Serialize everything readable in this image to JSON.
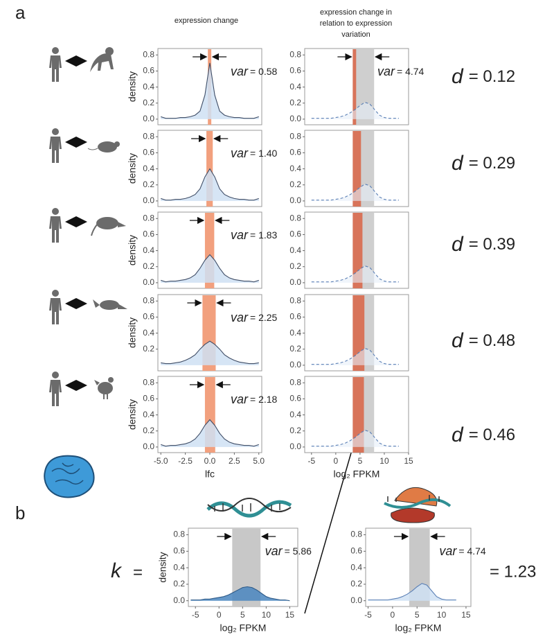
{
  "panel_labels": {
    "a": "a",
    "b": "b"
  },
  "column_titles": {
    "left": "expression change",
    "right": [
      "expression change in",
      "relation to expression",
      "variation"
    ]
  },
  "d_values": [
    {
      "symbol": "d",
      "text": "= 0.12"
    },
    {
      "symbol": "d",
      "text": "= 0.29"
    },
    {
      "symbol": "d",
      "text": "= 0.39"
    },
    {
      "symbol": "d",
      "text": "= 0.48"
    },
    {
      "symbol": "d",
      "text": "= 0.46"
    }
  ],
  "panel_b": {
    "k": "k",
    "eq": "=",
    "result": "= 1.23"
  },
  "chart_data": [
    {
      "type": "area",
      "x": [
        -5,
        -4.5,
        -4,
        -3.5,
        -3,
        -2.5,
        -2,
        -1.5,
        -1,
        -0.5,
        0,
        0.5,
        1,
        1.5,
        2,
        2.5,
        3,
        3.5,
        4,
        4.5,
        5
      ],
      "values": [
        0.03,
        0.01,
        0.01,
        0.01,
        0.02,
        0.02,
        0.03,
        0.05,
        0.1,
        0.3,
        0.7,
        0.3,
        0.1,
        0.05,
        0.03,
        0.02,
        0.02,
        0.01,
        0.01,
        0.01,
        0.03
      ],
      "xlim": [
        -5.3,
        5.3
      ],
      "ylim": [
        -0.07,
        0.88
      ],
      "yticks": [
        {
          "value": 0,
          "label": "0.0"
        },
        {
          "value": 0.2,
          "label": "0.2"
        },
        {
          "value": 0.4,
          "label": "0.4"
        },
        {
          "value": 0.6,
          "label": "0.6"
        },
        {
          "value": 0.8,
          "label": "0.8"
        }
      ],
      "y_label": "density",
      "color": "#cfe0f3",
      "line_color": "#3f4d66",
      "dashed": false,
      "bands": [
        {
          "range": [
            -0.2,
            0.15
          ],
          "color": "#f2a07e"
        }
      ],
      "arrows": true,
      "annotation": {
        "symbol": "var",
        "text": "= 0.58"
      }
    },
    {
      "type": "area",
      "x": [
        -5,
        -4,
        -3,
        -2,
        -1,
        0,
        1,
        2,
        3,
        4,
        5,
        6,
        7,
        8,
        9,
        10,
        11,
        12,
        13
      ],
      "values": [
        0.01,
        0.01,
        0.01,
        0.01,
        0.01,
        0.02,
        0.03,
        0.05,
        0.08,
        0.12,
        0.17,
        0.21,
        0.19,
        0.12,
        0.05,
        0.02,
        0.01,
        0.01,
        0.01
      ],
      "xlim": [
        -6.4,
        15
      ],
      "ylim": [
        -0.07,
        0.88
      ],
      "yticks": [
        {
          "value": 0,
          "label": "0.0"
        },
        {
          "value": 0.2,
          "label": "0.2"
        },
        {
          "value": 0.4,
          "label": "0.4"
        },
        {
          "value": 0.6,
          "label": "0.6"
        },
        {
          "value": 0.8,
          "label": "0.8"
        }
      ],
      "color": "#e6eef8",
      "line_color": "#5a7fb5",
      "dashed": true,
      "bands": [
        {
          "range": [
            3.5,
            7.9
          ],
          "color": "#cfcfcf"
        },
        {
          "range": [
            3.5,
            4.2
          ],
          "color": "#d8745a"
        }
      ],
      "arrows": true,
      "annotation": {
        "symbol": "var",
        "text": "= 4.74"
      }
    },
    {
      "type": "area",
      "x": [
        -5,
        -4.5,
        -4,
        -3.5,
        -3,
        -2.5,
        -2,
        -1.5,
        -1,
        -0.5,
        0,
        0.5,
        1,
        1.5,
        2,
        2.5,
        3,
        3.5,
        4,
        4.5,
        5
      ],
      "values": [
        0.03,
        0.01,
        0.01,
        0.02,
        0.02,
        0.03,
        0.05,
        0.08,
        0.15,
        0.3,
        0.4,
        0.3,
        0.15,
        0.08,
        0.05,
        0.03,
        0.02,
        0.02,
        0.01,
        0.01,
        0.03
      ],
      "xlim": [
        -5.3,
        5.3
      ],
      "ylim": [
        -0.07,
        0.88
      ],
      "yticks": [
        {
          "value": 0,
          "label": "0.0"
        },
        {
          "value": 0.2,
          "label": "0.2"
        },
        {
          "value": 0.4,
          "label": "0.4"
        },
        {
          "value": 0.6,
          "label": "0.6"
        },
        {
          "value": 0.8,
          "label": "0.8"
        }
      ],
      "y_label": "density",
      "color": "#cfe0f3",
      "line_color": "#3f4d66",
      "dashed": false,
      "bands": [
        {
          "range": [
            -0.35,
            0.3
          ],
          "color": "#f2a07e"
        }
      ],
      "arrows": true,
      "annotation": {
        "symbol": "var",
        "text": "= 1.40"
      }
    },
    {
      "type": "area",
      "x": [
        -5,
        -4,
        -3,
        -2,
        -1,
        0,
        1,
        2,
        3,
        4,
        5,
        6,
        7,
        8,
        9,
        10,
        11,
        12,
        13
      ],
      "values": [
        0.01,
        0.01,
        0.01,
        0.01,
        0.01,
        0.02,
        0.03,
        0.05,
        0.08,
        0.12,
        0.17,
        0.21,
        0.19,
        0.12,
        0.05,
        0.02,
        0.01,
        0.01,
        0.01
      ],
      "xlim": [
        -6.4,
        15
      ],
      "ylim": [
        -0.07,
        0.88
      ],
      "yticks": [
        {
          "value": 0,
          "label": "0.0"
        },
        {
          "value": 0.2,
          "label": "0.2"
        },
        {
          "value": 0.4,
          "label": "0.4"
        },
        {
          "value": 0.6,
          "label": "0.6"
        },
        {
          "value": 0.8,
          "label": "0.8"
        }
      ],
      "color": "#e6eef8",
      "line_color": "#5a7fb5",
      "dashed": true,
      "bands": [
        {
          "range": [
            3.5,
            7.9
          ],
          "color": "#cfcfcf"
        },
        {
          "range": [
            3.5,
            5.2
          ],
          "color": "#d8745a"
        }
      ]
    },
    {
      "type": "area",
      "x": [
        -5,
        -4.5,
        -4,
        -3.5,
        -3,
        -2.5,
        -2,
        -1.5,
        -1,
        -0.5,
        0,
        0.5,
        1,
        1.5,
        2,
        2.5,
        3,
        3.5,
        4,
        4.5,
        5
      ],
      "values": [
        0.03,
        0.01,
        0.02,
        0.02,
        0.03,
        0.04,
        0.06,
        0.1,
        0.18,
        0.28,
        0.35,
        0.28,
        0.18,
        0.1,
        0.06,
        0.04,
        0.03,
        0.02,
        0.02,
        0.01,
        0.03
      ],
      "xlim": [
        -5.3,
        5.3
      ],
      "ylim": [
        -0.07,
        0.88
      ],
      "yticks": [
        {
          "value": 0,
          "label": "0.0"
        },
        {
          "value": 0.2,
          "label": "0.2"
        },
        {
          "value": 0.4,
          "label": "0.4"
        },
        {
          "value": 0.6,
          "label": "0.6"
        },
        {
          "value": 0.8,
          "label": "0.8"
        }
      ],
      "y_label": "density",
      "color": "#cfe0f3",
      "line_color": "#3f4d66",
      "dashed": false,
      "bands": [
        {
          "range": [
            -0.5,
            0.45
          ],
          "color": "#f2a07e"
        }
      ],
      "arrows": true,
      "annotation": {
        "symbol": "var",
        "text": "= 1.83"
      }
    },
    {
      "type": "area",
      "x": [
        -5,
        -4,
        -3,
        -2,
        -1,
        0,
        1,
        2,
        3,
        4,
        5,
        6,
        7,
        8,
        9,
        10,
        11,
        12,
        13
      ],
      "values": [
        0.01,
        0.01,
        0.01,
        0.01,
        0.01,
        0.02,
        0.03,
        0.05,
        0.08,
        0.12,
        0.17,
        0.21,
        0.19,
        0.12,
        0.05,
        0.02,
        0.01,
        0.01,
        0.01
      ],
      "xlim": [
        -6.4,
        15
      ],
      "ylim": [
        -0.07,
        0.88
      ],
      "yticks": [
        {
          "value": 0,
          "label": "0.0"
        },
        {
          "value": 0.2,
          "label": "0.2"
        },
        {
          "value": 0.4,
          "label": "0.4"
        },
        {
          "value": 0.6,
          "label": "0.6"
        },
        {
          "value": 0.8,
          "label": "0.8"
        }
      ],
      "color": "#e6eef8",
      "line_color": "#5a7fb5",
      "dashed": true,
      "bands": [
        {
          "range": [
            3.5,
            7.9
          ],
          "color": "#cfcfcf"
        },
        {
          "range": [
            3.5,
            5.5
          ],
          "color": "#d8745a"
        }
      ]
    },
    {
      "type": "area",
      "x": [
        -5,
        -4.5,
        -4,
        -3.5,
        -3,
        -2.5,
        -2,
        -1.5,
        -1,
        -0.5,
        0,
        0.5,
        1,
        1.5,
        2,
        2.5,
        3,
        3.5,
        4,
        4.5,
        5
      ],
      "values": [
        0.03,
        0.02,
        0.02,
        0.03,
        0.04,
        0.06,
        0.09,
        0.13,
        0.2,
        0.26,
        0.3,
        0.26,
        0.2,
        0.13,
        0.09,
        0.06,
        0.04,
        0.03,
        0.02,
        0.02,
        0.03
      ],
      "xlim": [
        -5.3,
        5.3
      ],
      "ylim": [
        -0.07,
        0.88
      ],
      "yticks": [
        {
          "value": 0.2,
          "label": "0.2"
        },
        {
          "value": 0.4,
          "label": "0.4"
        },
        {
          "value": 0.6,
          "label": "0.6"
        },
        {
          "value": 0.8,
          "label": "0.8"
        }
      ],
      "y_label": "density",
      "color": "#cfe0f3",
      "line_color": "#3f4d66",
      "dashed": false,
      "bands": [
        {
          "range": [
            -0.75,
            0.6
          ],
          "color": "#f2a07e"
        }
      ],
      "arrows": true,
      "annotation": {
        "symbol": "var",
        "text": "= 2.25"
      }
    },
    {
      "type": "area",
      "x": [
        -5,
        -4,
        -3,
        -2,
        -1,
        0,
        1,
        2,
        3,
        4,
        5,
        6,
        7,
        8,
        9,
        10,
        11,
        12,
        13
      ],
      "values": [
        0.01,
        0.01,
        0.01,
        0.01,
        0.01,
        0.02,
        0.03,
        0.05,
        0.08,
        0.12,
        0.17,
        0.21,
        0.19,
        0.12,
        0.05,
        0.02,
        0.01,
        0.01,
        0.01
      ],
      "xlim": [
        -6.4,
        15
      ],
      "ylim": [
        -0.07,
        0.88
      ],
      "yticks": [
        {
          "value": 0,
          "label": "0.0"
        },
        {
          "value": 0.2,
          "label": "0.2"
        },
        {
          "value": 0.4,
          "label": "0.4"
        },
        {
          "value": 0.6,
          "label": "0.6"
        },
        {
          "value": 0.8,
          "label": "0.8"
        }
      ],
      "color": "#e6eef8",
      "line_color": "#5a7fb5",
      "dashed": true,
      "bands": [
        {
          "range": [
            3.5,
            7.9
          ],
          "color": "#cfcfcf"
        },
        {
          "range": [
            3.5,
            5.9
          ],
          "color": "#d8745a"
        }
      ]
    },
    {
      "type": "area",
      "x": [
        -5,
        -4.5,
        -4,
        -3.5,
        -3,
        -2.5,
        -2,
        -1.5,
        -1,
        -0.5,
        0,
        0.5,
        1,
        1.5,
        2,
        2.5,
        3,
        3.5,
        4,
        4.5,
        5
      ],
      "values": [
        0.03,
        0.01,
        0.02,
        0.02,
        0.03,
        0.04,
        0.06,
        0.1,
        0.17,
        0.27,
        0.34,
        0.27,
        0.17,
        0.1,
        0.06,
        0.04,
        0.03,
        0.02,
        0.02,
        0.01,
        0.03
      ],
      "xlim": [
        -5.3,
        5.3
      ],
      "ylim": [
        -0.07,
        0.88
      ],
      "xticks": [
        {
          "value": -5,
          "label": "-5.0"
        },
        {
          "value": -2.5,
          "label": "-2.5"
        },
        {
          "value": 0,
          "label": "0.0"
        },
        {
          "value": 2.5,
          "label": "2.5"
        },
        {
          "value": 5,
          "label": "5.0"
        }
      ],
      "yticks": [
        {
          "value": 0,
          "label": "0.0"
        },
        {
          "value": 0.2,
          "label": "0.2"
        },
        {
          "value": 0.4,
          "label": "0.4"
        },
        {
          "value": 0.6,
          "label": "0.6"
        },
        {
          "value": 0.8,
          "label": "0.8"
        }
      ],
      "y_label": "density",
      "x_label": "lfc",
      "color": "#cfe0f3",
      "line_color": "#3f4d66",
      "dashed": false,
      "bands": [
        {
          "range": [
            -0.5,
            0.55
          ],
          "color": "#f2a07e"
        }
      ],
      "arrows": true,
      "annotation": {
        "symbol": "var",
        "text": "= 2.18"
      }
    },
    {
      "type": "area",
      "x": [
        -5,
        -4,
        -3,
        -2,
        -1,
        0,
        1,
        2,
        3,
        4,
        5,
        6,
        7,
        8,
        9,
        10,
        11,
        12,
        13
      ],
      "values": [
        0.01,
        0.01,
        0.01,
        0.01,
        0.01,
        0.02,
        0.03,
        0.05,
        0.08,
        0.12,
        0.17,
        0.21,
        0.19,
        0.12,
        0.05,
        0.02,
        0.01,
        0.01,
        0.01
      ],
      "xlim": [
        -6.4,
        15
      ],
      "ylim": [
        -0.07,
        0.88
      ],
      "xticks": [
        -5,
        0,
        5,
        10,
        15
      ],
      "yticks": [
        {
          "value": 0,
          "label": "0.0"
        },
        {
          "value": 0.2,
          "label": "0.2"
        },
        {
          "value": 0.4,
          "label": "0.4"
        },
        {
          "value": 0.6,
          "label": "0.6"
        },
        {
          "value": 0.8,
          "label": "0.8"
        }
      ],
      "x_label": "log₂ FPKM",
      "color": "#e6eef8",
      "line_color": "#5a7fb5",
      "dashed": true,
      "bands": [
        {
          "range": [
            3.5,
            7.9
          ],
          "color": "#cfcfcf"
        },
        {
          "range": [
            3.5,
            5.8
          ],
          "color": "#d8745a"
        }
      ]
    },
    {
      "type": "area",
      "x": [
        -6,
        -5,
        -4,
        -3,
        -2,
        -1,
        0,
        1,
        2,
        3,
        4,
        5,
        6,
        7,
        8,
        9,
        10,
        11,
        12,
        13,
        14,
        15
      ],
      "values": [
        0.01,
        0.01,
        0.01,
        0.02,
        0.02,
        0.03,
        0.04,
        0.05,
        0.07,
        0.1,
        0.13,
        0.16,
        0.17,
        0.16,
        0.13,
        0.09,
        0.05,
        0.03,
        0.02,
        0.01,
        0.01,
        0
      ],
      "xlim": [
        -6.5,
        16.7
      ],
      "ylim": [
        -0.07,
        0.88
      ],
      "xticks": [
        -5,
        0,
        5,
        10,
        15
      ],
      "yticks": [
        {
          "value": 0,
          "label": "0.0"
        },
        {
          "value": 0.2,
          "label": "0.2"
        },
        {
          "value": 0.4,
          "label": "0.4"
        },
        {
          "value": 0.6,
          "label": "0.6"
        },
        {
          "value": 0.8,
          "label": "0.8"
        }
      ],
      "y_label": "density",
      "x_label": "log₂ FPKM",
      "color": "#4a86c0",
      "line_color": "#2e5a88",
      "dashed": false,
      "bands": [
        {
          "range": [
            2.8,
            8.8
          ],
          "color": "#c8c8c8"
        }
      ],
      "arrows": true,
      "annotation": {
        "symbol": "var",
        "text": "= 5.86"
      }
    },
    {
      "type": "area",
      "x": [
        -5,
        -4,
        -3,
        -2,
        -1,
        0,
        1,
        2,
        3,
        4,
        5,
        6,
        7,
        8,
        9,
        10,
        11,
        12,
        13
      ],
      "values": [
        0.01,
        0.01,
        0.01,
        0.01,
        0.01,
        0.02,
        0.03,
        0.05,
        0.08,
        0.12,
        0.17,
        0.21,
        0.19,
        0.12,
        0.05,
        0.02,
        0.01,
        0.01,
        0.01
      ],
      "xlim": [
        -5.5,
        16
      ],
      "ylim": [
        -0.07,
        0.88
      ],
      "xticks": [
        -5,
        0,
        5,
        10,
        15
      ],
      "yticks": [
        {
          "value": 0,
          "label": "0.0"
        },
        {
          "value": 0.2,
          "label": "0.2"
        },
        {
          "value": 0.4,
          "label": "0.4"
        },
        {
          "value": 0.6,
          "label": "0.6"
        },
        {
          "value": 0.8,
          "label": "0.8"
        }
      ],
      "x_label": "log₂ FPKM",
      "color": "#cfe0f3",
      "line_color": "#5a7fb5",
      "dashed": false,
      "bands": [
        {
          "range": [
            3.4,
            7.6
          ],
          "color": "#c8c8c8"
        }
      ],
      "arrows": true,
      "annotation": {
        "symbol": "var",
        "text": "= 4.74"
      }
    }
  ]
}
